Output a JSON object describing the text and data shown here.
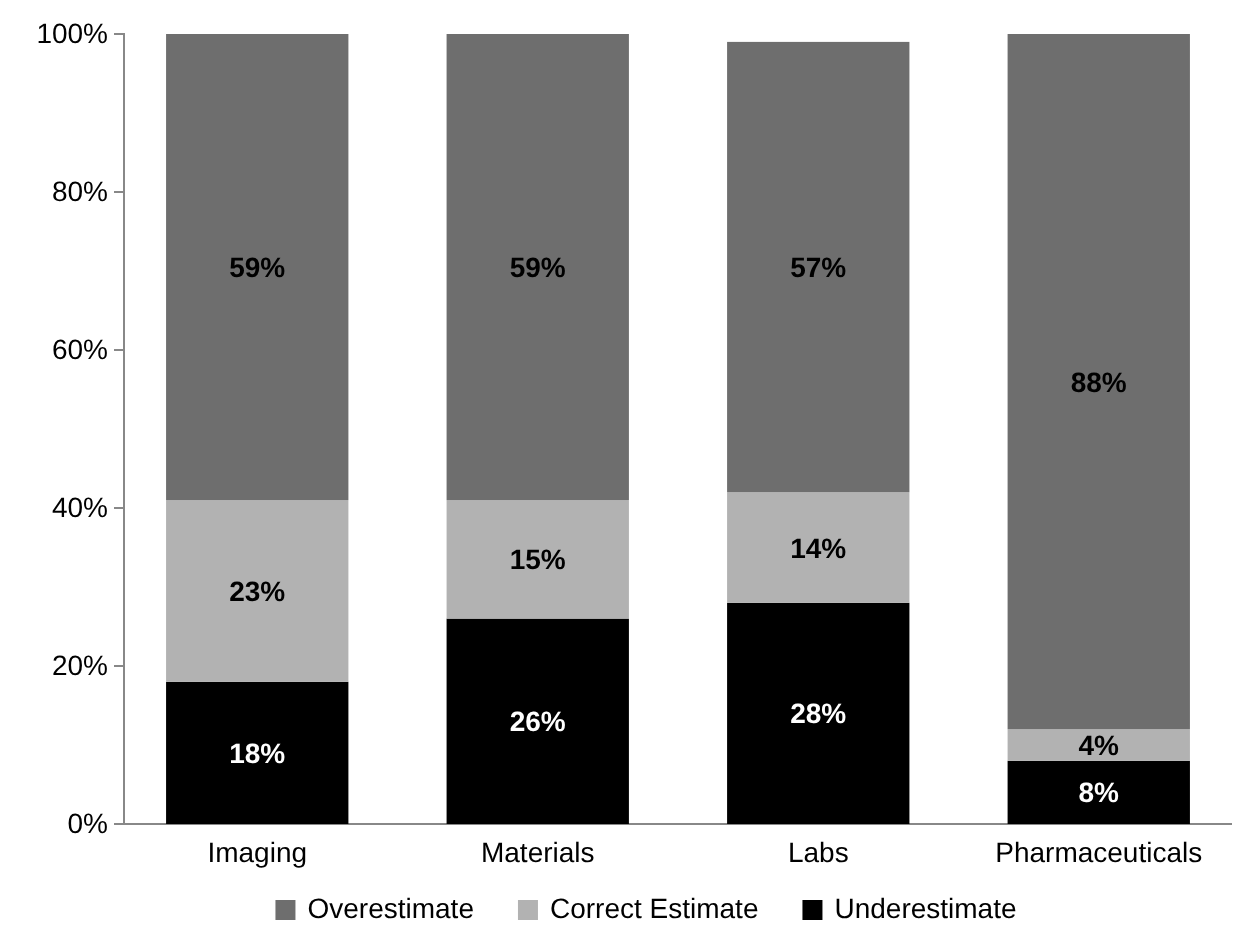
{
  "chart_data": {
    "type": "bar",
    "stacked": true,
    "categories": [
      "Imaging",
      "Materials",
      "Labs",
      "Pharmaceuticals"
    ],
    "series": [
      {
        "name": "Underestimate",
        "color": "#000000",
        "values": [
          18,
          26,
          28,
          8
        ],
        "value_labels": [
          "18%",
          "26%",
          "28%",
          "8%"
        ]
      },
      {
        "name": "Correct Estimate",
        "color": "#b2b2b2",
        "values": [
          23,
          15,
          14,
          4
        ],
        "value_labels": [
          "23%",
          "15%",
          "14%",
          "4%"
        ]
      },
      {
        "name": "Overestimate",
        "color": "#6e6e6e",
        "values": [
          59,
          59,
          57,
          88
        ],
        "value_labels": [
          "59%",
          "59%",
          "57%",
          "88%"
        ]
      }
    ],
    "ylim": [
      0,
      100
    ],
    "yticks": [
      {
        "value": 0,
        "label": "0%"
      },
      {
        "value": 20,
        "label": "20%"
      },
      {
        "value": 40,
        "label": "40%"
      },
      {
        "value": 60,
        "label": "60%"
      },
      {
        "value": 80,
        "label": "80%"
      },
      {
        "value": 100,
        "label": "100%"
      }
    ],
    "grid": false,
    "legend": "bottom"
  }
}
